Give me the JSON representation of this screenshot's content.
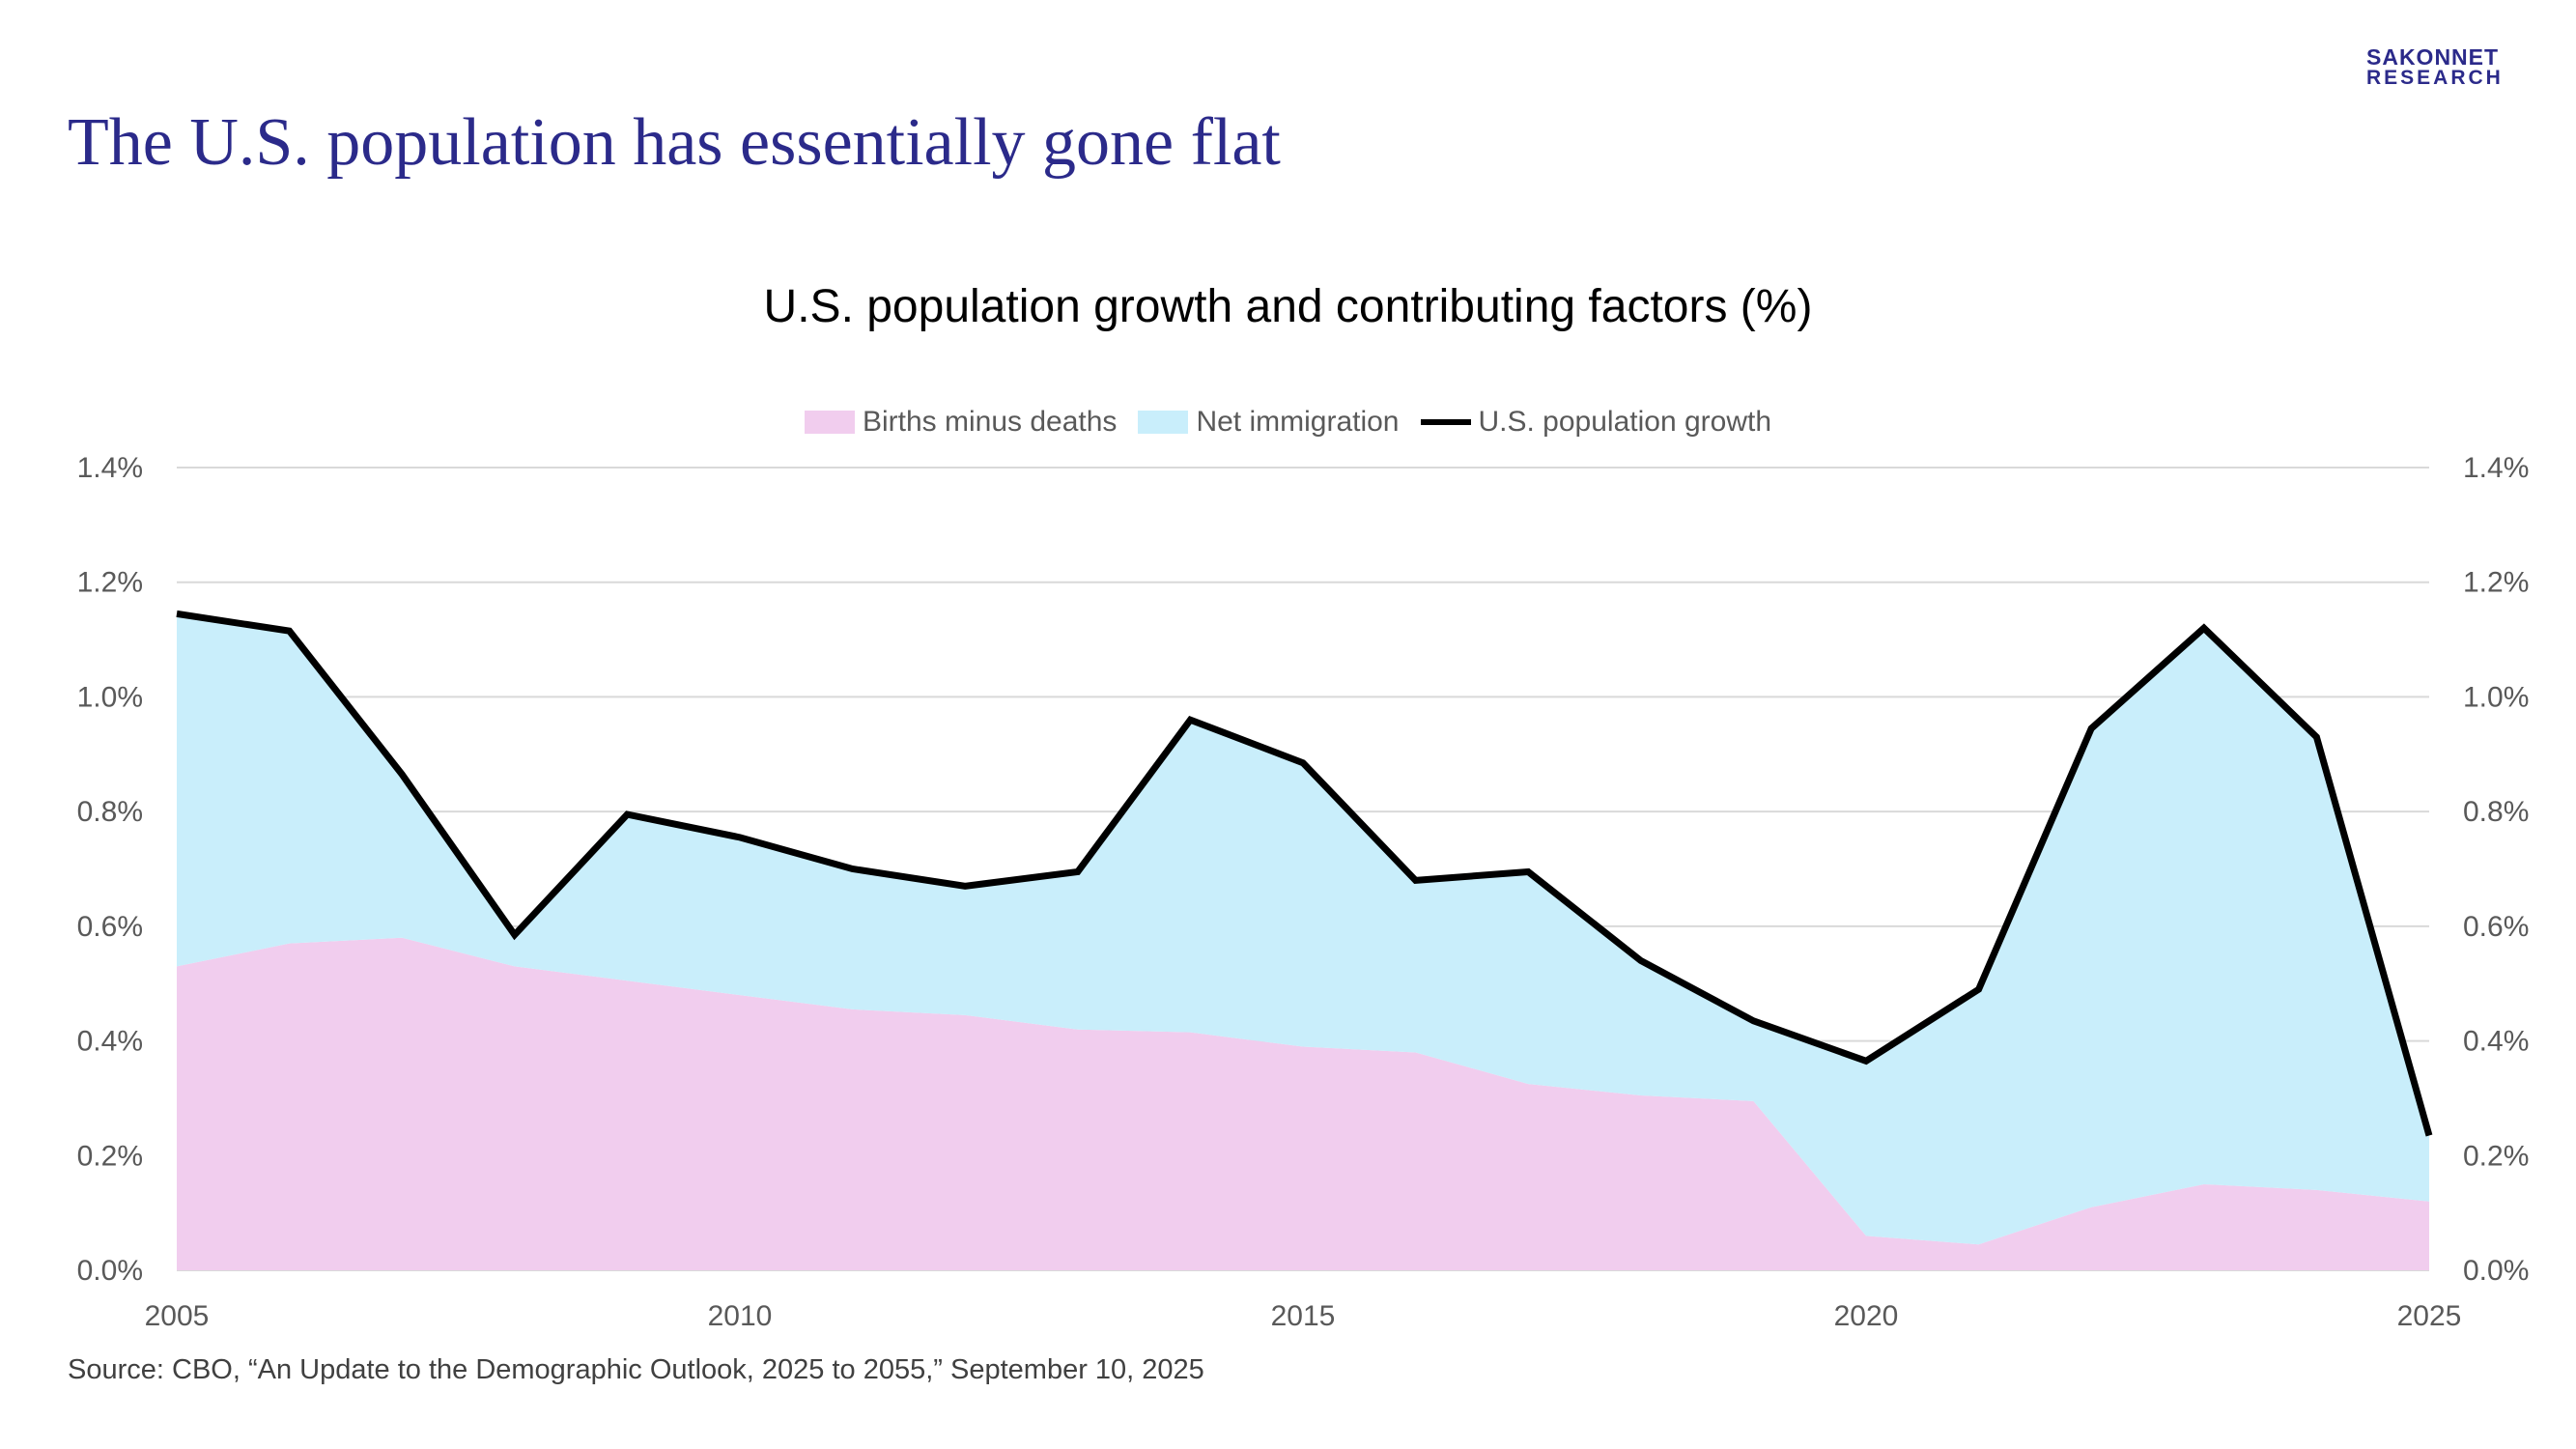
{
  "slide": {
    "title": "The U.S. population has essentially gone flat",
    "logo_line1": "SAKONNET",
    "logo_line2": "RESEARCH",
    "source": "Source: CBO, “An Update to the Demographic Outlook, 2025 to 2055,” September 10, 2025"
  },
  "colors": {
    "title": "#2b2a8a",
    "births_minus_deaths": "#f1cdee",
    "net_immigration": "#c9eefb",
    "population_growth": "#000000",
    "gridline": "#d9d9d9"
  },
  "chart_data": {
    "type": "area",
    "title": "U.S. population growth and contributing factors (%)",
    "x": [
      2005,
      2006,
      2007,
      2008,
      2009,
      2010,
      2011,
      2012,
      2013,
      2014,
      2015,
      2016,
      2017,
      2018,
      2019,
      2020,
      2021,
      2022,
      2023,
      2024,
      2025
    ],
    "x_tick_labels": [
      "2005",
      "2010",
      "2015",
      "2020",
      "2025"
    ],
    "y_tick_labels": [
      "0.0%",
      "0.2%",
      "0.4%",
      "0.6%",
      "0.8%",
      "1.0%",
      "1.2%",
      "1.4%"
    ],
    "ylim": [
      0,
      1.4
    ],
    "secondary_y_axis": true,
    "grid": true,
    "legend_position": "top",
    "series": [
      {
        "name": "Births minus deaths",
        "kind": "stacked-area",
        "values": [
          0.53,
          0.57,
          0.58,
          0.53,
          0.505,
          0.48,
          0.455,
          0.445,
          0.42,
          0.415,
          0.39,
          0.38,
          0.325,
          0.305,
          0.295,
          0.06,
          0.045,
          0.11,
          0.15,
          0.14,
          0.12
        ]
      },
      {
        "name": "Net immigration",
        "kind": "stacked-area",
        "values": [
          0.615,
          0.545,
          0.285,
          0.055,
          0.29,
          0.275,
          0.245,
          0.225,
          0.275,
          0.545,
          0.495,
          0.3,
          0.37,
          0.235,
          0.14,
          0.305,
          0.445,
          0.835,
          0.97,
          0.79,
          0.115
        ]
      },
      {
        "name": "U.S. population growth",
        "kind": "line",
        "values": [
          1.145,
          1.115,
          0.865,
          0.585,
          0.795,
          0.755,
          0.7,
          0.67,
          0.695,
          0.96,
          0.885,
          0.68,
          0.695,
          0.54,
          0.435,
          0.365,
          0.49,
          0.945,
          1.12,
          0.93,
          0.235
        ]
      }
    ]
  }
}
